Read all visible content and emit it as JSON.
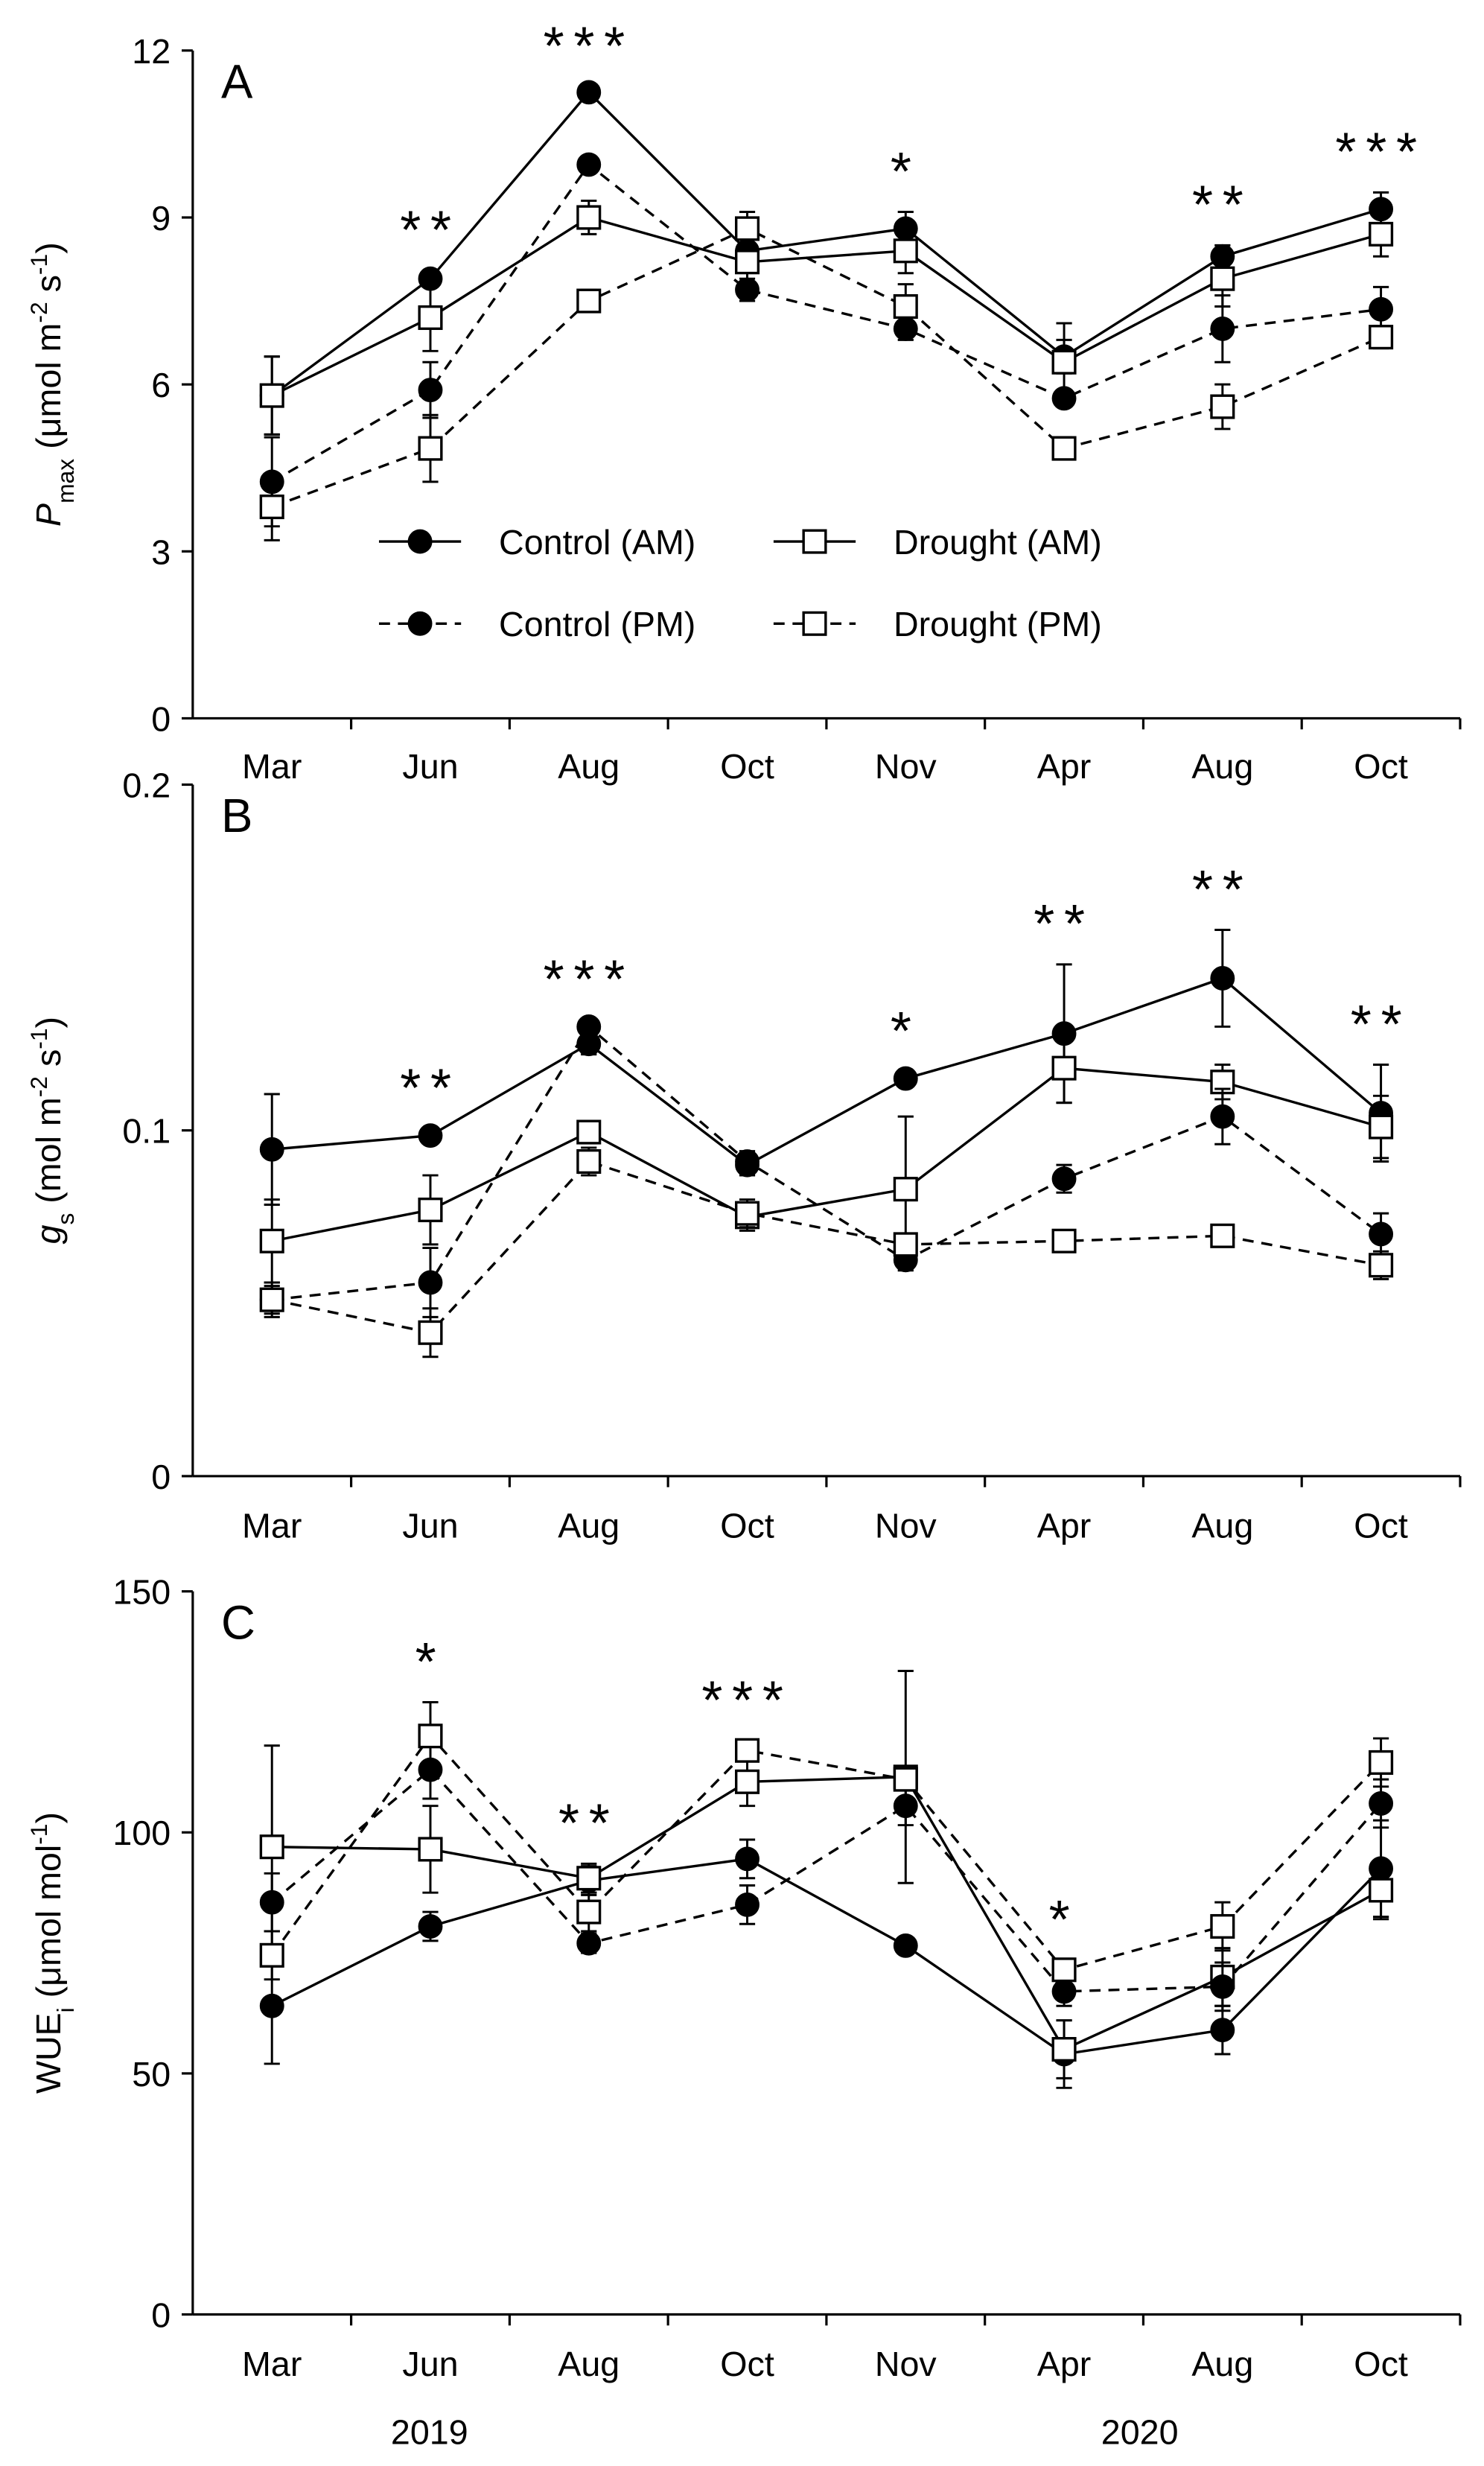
{
  "chart_data": {
    "type": "line",
    "categories": [
      "Mar",
      "Jun",
      "Aug",
      "Oct",
      "Nov",
      "Apr",
      "Aug",
      "Oct"
    ],
    "years": [
      {
        "label": "2019",
        "between": [
          0,
          3
        ]
      },
      {
        "label": "2020",
        "between": [
          5,
          6
        ]
      }
    ],
    "legend": {
      "placement": "panel-A-lower-middle",
      "entries": [
        {
          "name": "Control (AM)",
          "marker": "filled-circle",
          "line": "solid"
        },
        {
          "name": "Drought (AM)",
          "marker": "open-square",
          "line": "solid"
        },
        {
          "name": "Control (PM)",
          "marker": "filled-circle",
          "line": "dashed"
        },
        {
          "name": "Drought (PM)",
          "marker": "open-square",
          "line": "dashed"
        }
      ]
    },
    "panels": [
      {
        "letter": "A",
        "ylabel_parts": [
          {
            "t": "P",
            "s": "italic"
          },
          {
            "t": "max",
            "s": "sub"
          },
          {
            "t": " (μmol m",
            "s": "normal"
          },
          {
            "t": "-2",
            "s": "sup"
          },
          {
            "t": " s",
            "s": "normal"
          },
          {
            "t": "-1",
            "s": "sup"
          },
          {
            "t": ")",
            "s": "normal"
          }
        ],
        "ylim": [
          0,
          12
        ],
        "yticks": [
          "0",
          "3",
          "6",
          "9",
          "12"
        ],
        "significance": [
          "",
          "**",
          "***",
          "",
          "*",
          "",
          "**",
          "***"
        ],
        "series": [
          {
            "name": "Control (AM)",
            "values": [
              5.8,
              7.9,
              11.25,
              8.4,
              8.8,
              6.5,
              8.3,
              9.15
            ],
            "errors": [
              0.7,
              0.15,
              0.1,
              0.5,
              0.3,
              0.3,
              0.2,
              0.3
            ]
          },
          {
            "name": "Drought (AM)",
            "values": [
              5.8,
              7.2,
              9.0,
              8.2,
              8.4,
              6.4,
              7.9,
              8.7
            ],
            "errors": [
              0.7,
              0.6,
              0.3,
              0.7,
              0.4,
              0.7,
              0.5,
              0.4
            ]
          },
          {
            "name": "Control (PM)",
            "values": [
              4.25,
              5.9,
              9.95,
              7.7,
              7.0,
              5.75,
              7.0,
              7.35
            ],
            "errors": [
              0.8,
              0.5,
              0.1,
              0.15,
              0.2,
              0.15,
              0.6,
              0.4
            ]
          },
          {
            "name": "Drought (PM)",
            "values": [
              3.8,
              4.85,
              7.5,
              8.8,
              7.4,
              4.85,
              5.6,
              6.85
            ],
            "errors": [
              0.6,
              0.6,
              0.2,
              0.3,
              0.4,
              0.2,
              0.4,
              0.2
            ]
          }
        ]
      },
      {
        "letter": "B",
        "ylabel_parts": [
          {
            "t": "g",
            "s": "italic"
          },
          {
            "t": "s",
            "s": "sub"
          },
          {
            "t": " (mol m",
            "s": "normal"
          },
          {
            "t": "-2",
            "s": "sup"
          },
          {
            "t": " s",
            "s": "normal"
          },
          {
            "t": "-1",
            "s": "sup"
          },
          {
            "t": ")",
            "s": "normal"
          }
        ],
        "ylim": [
          0,
          0.2
        ],
        "yticks": [
          "0",
          "0.1",
          "0.2"
        ],
        "significance": [
          "",
          "**",
          "***",
          "",
          "*",
          "**",
          "**",
          "**"
        ],
        "series": [
          {
            "name": "Control (AM)",
            "values": [
              0.0945,
              0.0985,
              0.125,
              0.09,
              0.115,
              0.128,
              0.144,
              0.105
            ],
            "errors": [
              0.016,
              0.002,
              0.003,
              0.003,
              0.002,
              0.02,
              0.014,
              0.014
            ]
          },
          {
            "name": "Drought (AM)",
            "values": [
              0.068,
              0.077,
              0.0995,
              0.075,
              0.083,
              0.118,
              0.114,
              0.101
            ],
            "errors": [
              0.012,
              0.01,
              0.002,
              0.004,
              0.021,
              0.01,
              0.005,
              0.009
            ]
          },
          {
            "name": "Control (PM)",
            "values": [
              0.051,
              0.056,
              0.13,
              0.091,
              0.0625,
              0.086,
              0.104,
              0.07
            ],
            "errors": [
              0.005,
              0.01,
              0.002,
              0.003,
              0.003,
              0.004,
              0.008,
              0.006
            ]
          },
          {
            "name": "Drought (PM)",
            "values": [
              0.051,
              0.0415,
              0.091,
              0.076,
              0.067,
              0.068,
              0.0695,
              0.061
            ],
            "errors": [
              0.004,
              0.007,
              0.004,
              0.004,
              0.003,
              0.002,
              0.001,
              0.004
            ]
          }
        ]
      },
      {
        "letter": "C",
        "ylabel_parts": [
          {
            "t": "WUE",
            "s": "normal"
          },
          {
            "t": "i",
            "s": "sub"
          },
          {
            "t": " (μmol mol",
            "s": "normal"
          },
          {
            "t": "-1",
            "s": "sup"
          },
          {
            "t": ")",
            "s": "normal"
          }
        ],
        "ylim": [
          0,
          150
        ],
        "yticks": [
          "0",
          "50",
          "100",
          "150"
        ],
        "significance": [
          "",
          "*",
          "**",
          "***",
          "",
          "*",
          "",
          ""
        ],
        "series": [
          {
            "name": "Control (AM)",
            "values": [
              64,
              80.5,
              90,
              94.5,
              76.5,
              54,
              59,
              92.5
            ],
            "errors": [
              12,
              3,
              3,
              4,
              1,
              7,
              5,
              10
            ]
          },
          {
            "name": "Drought (AM)",
            "values": [
              97,
              96.5,
              90.5,
              110.5,
              111.5,
              55,
              70,
              88
            ],
            "errors": [
              21,
              9,
              3,
              5,
              22,
              6,
              6,
              6
            ]
          },
          {
            "name": "Control (PM)",
            "values": [
              85.5,
              113,
              77,
              85,
              105.5,
              67,
              68,
              106
            ],
            "errors": [
              6,
              6,
              2,
              4,
              4,
              3,
              5,
              5
            ]
          },
          {
            "name": "Drought (PM)",
            "values": [
              74.5,
              120,
              83.5,
              117,
              111,
              71.5,
              80.5,
              114.5
            ],
            "errors": [
              5,
              7,
              4,
              2,
              2,
              2,
              5,
              5
            ]
          }
        ]
      }
    ]
  }
}
